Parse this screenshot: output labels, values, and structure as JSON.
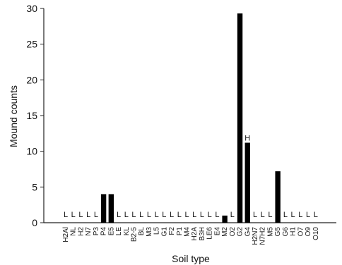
{
  "chart_data": {
    "type": "bar",
    "xlabel": "Soil type",
    "ylabel": "Mound counts",
    "ylim": [
      0,
      30
    ],
    "yticks": [
      0,
      5,
      10,
      15,
      20,
      25,
      30
    ],
    "grid": false,
    "categories": [
      "H2Al",
      "NL",
      "H2",
      "N7",
      "P3",
      "P4",
      "E5",
      "LE",
      "KL",
      "B2-5",
      "BL",
      "M3",
      "L5",
      "G1",
      "F2",
      "P1",
      "M4",
      "H2A",
      "B3H",
      "LE6",
      "E4",
      "M2",
      "O2",
      "G2",
      "G4",
      "H2N7",
      "N7H2",
      "M5",
      "G5",
      "G6",
      "H1",
      "O7",
      "O9",
      "O10"
    ],
    "values": [
      0,
      0,
      0,
      0,
      0,
      4,
      4,
      0,
      0,
      0,
      0,
      0,
      0,
      0,
      0,
      0,
      0,
      0,
      0,
      0,
      0,
      1,
      0,
      29.3,
      11.2,
      0,
      0,
      0,
      7.2,
      0,
      0,
      0,
      0,
      0
    ],
    "annotations": [
      "L",
      "L",
      "L",
      "L",
      "L",
      "",
      "",
      "L",
      "L",
      "L",
      "L",
      "L",
      "L",
      "L",
      "L",
      "L",
      "L",
      "L",
      "L",
      "L",
      "L",
      "",
      "L",
      "",
      "H",
      "L",
      "L",
      "L",
      "",
      "L",
      "L",
      "L",
      "L",
      "L"
    ]
  }
}
